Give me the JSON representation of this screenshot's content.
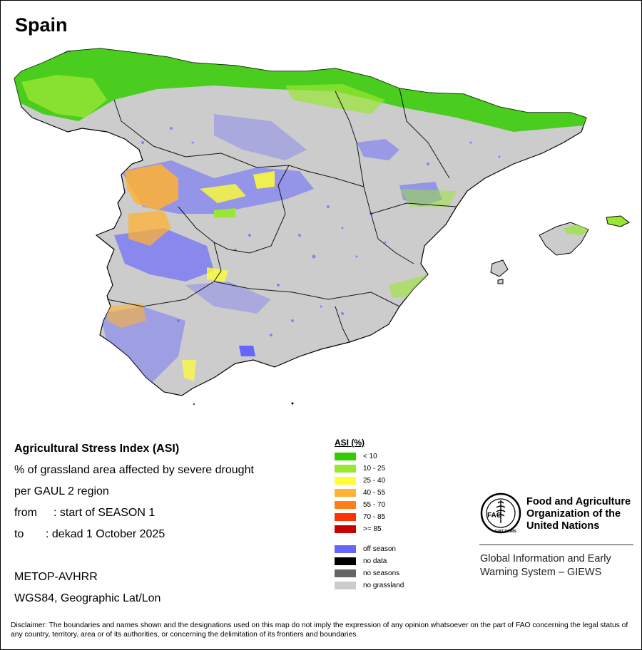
{
  "title": "Spain",
  "info": {
    "line1": "Agricultural Stress Index (ASI)",
    "line2": "% of grassland area affected by severe drought",
    "line3": "per GAUL 2 region",
    "from_label": "from",
    "from_value": ": start of SEASON 1",
    "to_label": "to",
    "to_value": ": dekad 1 October 2025",
    "sensor": "METOP-AVHRR",
    "projection": "WGS84, Geographic Lat/Lon"
  },
  "legend": {
    "title": "ASI (%)",
    "classes": [
      {
        "label": "< 10",
        "color": "#33cc00"
      },
      {
        "label": "10 - 25",
        "color": "#99e633"
      },
      {
        "label": "25 - 40",
        "color": "#ffff33"
      },
      {
        "label": "40 - 55",
        "color": "#ffb233"
      },
      {
        "label": "55 - 70",
        "color": "#ff7f1a"
      },
      {
        "label": "70 - 85",
        "color": "#ff3300"
      },
      {
        "label": ">= 85",
        "color": "#cc0000"
      }
    ],
    "other": [
      {
        "label": "off season",
        "color": "#6666ff"
      },
      {
        "label": "no data",
        "color": "#000000"
      },
      {
        "label": "no seasons",
        "color": "#666666"
      },
      {
        "label": "no grassland",
        "color": "#cccccc"
      }
    ]
  },
  "fao": {
    "org_line1": "Food and Agriculture",
    "org_line2": "Organization of the",
    "org_line3": "United Nations",
    "logo_text": "FAO",
    "logo_motto": "FIAT PANIS",
    "giews_line1": "Global Information and Early",
    "giews_line2": "Warning System – GIEWS"
  },
  "disclaimer": "Disclaimer: The boundaries and names shown and the designations used on this map do not imply the expression of any opinion whatsoever on the part of FAO concerning the legal status of any country, territory, area or of its authorities, or concerning the delimitation of its frontiers and boundaries."
}
